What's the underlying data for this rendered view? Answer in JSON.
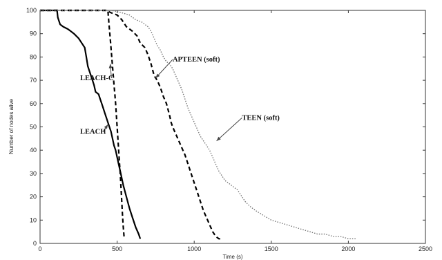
{
  "chart_data": {
    "type": "line",
    "title": "",
    "xlabel": "Time (s)",
    "ylabel": "Number of nodes alive",
    "xlim": [
      0,
      2500
    ],
    "ylim": [
      0,
      100
    ],
    "xticks": [
      0,
      500,
      1000,
      1500,
      2000,
      2500
    ],
    "yticks": [
      0,
      10,
      20,
      30,
      40,
      50,
      60,
      70,
      80,
      90,
      100
    ],
    "grid": false,
    "legend": "none",
    "series": [
      {
        "name": "LEACH",
        "style": "solid",
        "color": "#000000",
        "x": [
          0,
          110,
          115,
          130,
          150,
          180,
          200,
          220,
          250,
          270,
          290,
          300,
          310,
          320,
          330,
          340,
          350,
          360,
          380,
          390,
          400,
          410,
          420,
          440,
          450,
          460,
          470,
          480,
          490,
          500,
          510,
          520,
          530,
          540,
          560,
          580,
          600,
          620,
          640,
          650
        ],
        "y": [
          100,
          100,
          97,
          94,
          93,
          92,
          91,
          90,
          88,
          86,
          84,
          80,
          76,
          74,
          72,
          70,
          68,
          65,
          64,
          62,
          60,
          58,
          56,
          52,
          50,
          48,
          45,
          42,
          40,
          37,
          34,
          31,
          28,
          25,
          20,
          15,
          11,
          7,
          4,
          2
        ]
      },
      {
        "name": "LEACH-C",
        "style": "dash",
        "color": "#000000",
        "x": [
          0,
          440,
          445,
          450,
          455,
          460,
          465,
          470,
          475,
          480,
          485,
          490,
          495,
          500,
          505,
          510,
          515,
          520,
          525,
          530,
          535,
          540,
          545
        ],
        "y": [
          100,
          100,
          96,
          92,
          88,
          84,
          80,
          76,
          72,
          68,
          64,
          60,
          55,
          50,
          45,
          40,
          35,
          30,
          24,
          18,
          12,
          7,
          3
        ]
      },
      {
        "name": "APTEEN (soft)",
        "style": "dash",
        "color": "#000000",
        "x": [
          0,
          430,
          460,
          500,
          530,
          560,
          600,
          630,
          650,
          680,
          700,
          720,
          740,
          760,
          780,
          800,
          820,
          840,
          850,
          860,
          880,
          900,
          920,
          940,
          960,
          980,
          1000,
          1020,
          1040,
          1060,
          1080,
          1100,
          1120,
          1140,
          1160,
          1180
        ],
        "y": [
          100,
          100,
          99,
          98,
          96,
          93,
          91,
          89,
          86,
          84,
          81,
          77,
          72,
          70,
          67,
          63,
          60,
          55,
          52,
          50,
          47,
          44,
          41,
          38,
          34,
          30,
          26,
          22,
          18,
          14,
          11,
          8,
          5,
          3,
          2,
          2
        ]
      },
      {
        "name": "TEEN (soft)",
        "style": "dot",
        "color": "#777777",
        "x": [
          0,
          460,
          530,
          580,
          620,
          660,
          700,
          720,
          740,
          760,
          780,
          800,
          820,
          840,
          860,
          880,
          900,
          920,
          940,
          960,
          980,
          1000,
          1020,
          1040,
          1060,
          1080,
          1100,
          1120,
          1140,
          1160,
          1180,
          1200,
          1220,
          1240,
          1260,
          1280,
          1300,
          1330,
          1360,
          1400,
          1450,
          1500,
          1550,
          1600,
          1650,
          1700,
          1750,
          1800,
          1850,
          1900,
          1950,
          2000,
          2050
        ],
        "y": [
          100,
          100,
          99,
          98,
          96,
          95,
          93,
          91,
          88,
          85,
          83,
          80,
          78,
          77,
          75,
          72,
          69,
          66,
          62,
          58,
          55,
          52,
          49,
          46,
          44,
          42,
          40,
          37,
          34,
          31,
          29,
          27,
          26,
          25,
          24,
          23,
          21,
          18,
          16,
          14,
          12,
          10,
          9,
          8,
          7,
          6,
          5,
          4,
          4,
          3,
          3,
          2,
          2
        ]
      }
    ],
    "annotations": [
      {
        "text": "LEACH-C",
        "x_from": 260,
        "y_from": 70,
        "x_to": 455,
        "y_to": 77
      },
      {
        "text": "LEACH",
        "x_from": 260,
        "y_from": 47,
        "x_to": 440,
        "y_to": 51
      },
      {
        "text": "APTEEN (soft)",
        "x_from": 860,
        "y_from": 78,
        "x_to": 750,
        "y_to": 71
      },
      {
        "text": "TEEN (soft)",
        "x_from": 1310,
        "y_from": 53,
        "x_to": 1145,
        "y_to": 44
      }
    ]
  }
}
